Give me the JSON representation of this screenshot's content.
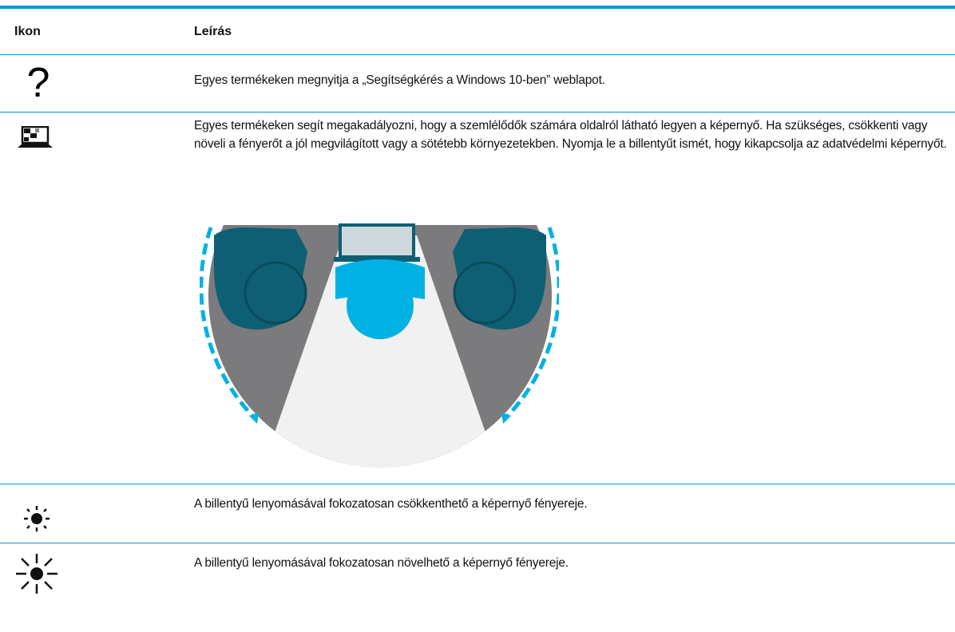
{
  "table": {
    "columns": [
      "Ikon",
      "Leírás"
    ],
    "rows": [
      [
        "Egyes termékeken megnyitja a „Segítségkérés a Windows 10-ben” weblapot."
      ],
      [
        "Egyes termékeken segít megakadályozni, hogy a szemlélődők számára oldalról látható legyen a képernyő. Ha szükséges, csökkenti vagy növeli a fényerőt a jól megvilágított vagy a sötétebb környezetekben. Nyomja le a billentyűt ismét, hogy kikapcsolja az adatvédelmi képernyőt."
      ],
      [
        "A billentyű lenyomásával fokozatosan csökkenthető a képernyő fényereje."
      ],
      [
        "A billentyű lenyomásával fokozatosan növelhető a képernyő fényereje."
      ]
    ]
  }
}
